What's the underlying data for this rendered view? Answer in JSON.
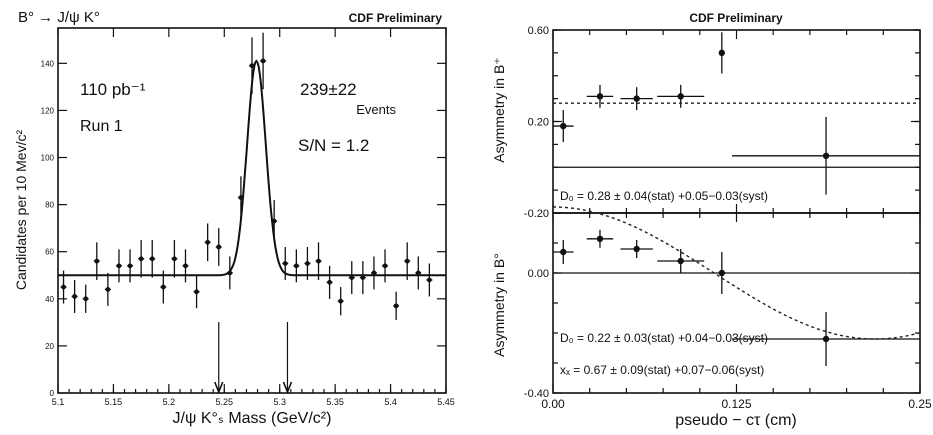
{
  "chart_data": [
    {
      "type": "scatter",
      "title": "CDF Preliminary",
      "process": "B° → J/ψ K°",
      "xlabel": "J/ψ K°ₛ Mass  (GeV/c²)",
      "ylabel": "Candidates per 10 Mev/c²",
      "xlim": [
        5.1,
        5.45
      ],
      "ylim": [
        0,
        155
      ],
      "xticks": [
        "5.1",
        "5.15",
        "5.2",
        "5.25",
        "5.3",
        "5.35",
        "5.4",
        "5.45"
      ],
      "yticks": [
        "0",
        "20",
        "40",
        "60",
        "80",
        "100",
        "120",
        "140"
      ],
      "annotations": {
        "lumi": "110 pb⁻¹",
        "run": "Run 1",
        "events_count": "239±22",
        "events_word": "Events",
        "sn": "S/N = 1.2"
      },
      "arrows_x": [
        5.245,
        5.307
      ],
      "background_level": 50,
      "peak": {
        "mean": 5.279,
        "amplitude": 91,
        "sigma": 0.0085
      },
      "points": [
        {
          "x": 5.105,
          "y": 45,
          "err": 7
        },
        {
          "x": 5.115,
          "y": 41,
          "err": 7
        },
        {
          "x": 5.125,
          "y": 40,
          "err": 6
        },
        {
          "x": 5.135,
          "y": 56,
          "err": 8
        },
        {
          "x": 5.145,
          "y": 44,
          "err": 7
        },
        {
          "x": 5.155,
          "y": 54,
          "err": 7
        },
        {
          "x": 5.165,
          "y": 54,
          "err": 7
        },
        {
          "x": 5.175,
          "y": 57,
          "err": 8
        },
        {
          "x": 5.185,
          "y": 57,
          "err": 8
        },
        {
          "x": 5.195,
          "y": 45,
          "err": 7
        },
        {
          "x": 5.205,
          "y": 57,
          "err": 8
        },
        {
          "x": 5.215,
          "y": 54,
          "err": 7
        },
        {
          "x": 5.225,
          "y": 43,
          "err": 7
        },
        {
          "x": 5.235,
          "y": 64,
          "err": 8
        },
        {
          "x": 5.245,
          "y": 62,
          "err": 8
        },
        {
          "x": 5.255,
          "y": 51,
          "err": 7
        },
        {
          "x": 5.265,
          "y": 83,
          "err": 9
        },
        {
          "x": 5.275,
          "y": 139,
          "err": 12
        },
        {
          "x": 5.285,
          "y": 141,
          "err": 12
        },
        {
          "x": 5.295,
          "y": 73,
          "err": 9
        },
        {
          "x": 5.305,
          "y": 55,
          "err": 7
        },
        {
          "x": 5.315,
          "y": 54,
          "err": 7
        },
        {
          "x": 5.325,
          "y": 55,
          "err": 7
        },
        {
          "x": 5.335,
          "y": 56,
          "err": 8
        },
        {
          "x": 5.345,
          "y": 47,
          "err": 7
        },
        {
          "x": 5.355,
          "y": 39,
          "err": 6
        },
        {
          "x": 5.365,
          "y": 49,
          "err": 7
        },
        {
          "x": 5.375,
          "y": 49,
          "err": 7
        },
        {
          "x": 5.385,
          "y": 51,
          "err": 7
        },
        {
          "x": 5.395,
          "y": 54,
          "err": 7
        },
        {
          "x": 5.405,
          "y": 37,
          "err": 6
        },
        {
          "x": 5.415,
          "y": 56,
          "err": 8
        },
        {
          "x": 5.425,
          "y": 51,
          "err": 7
        },
        {
          "x": 5.435,
          "y": 48,
          "err": 7
        }
      ]
    },
    {
      "type": "scatter",
      "title": "CDF Preliminary",
      "ylabel": "Asymmetry in B⁺",
      "xlim": [
        0,
        0.25
      ],
      "ylim": [
        -0.2,
        0.6
      ],
      "yticks": [
        "0.60",
        "0.20",
        "-0.20"
      ],
      "ytick_values": [
        0.6,
        0.2,
        -0.2
      ],
      "fit_level": 0.28,
      "fit_label": "D₀ = 0.28 ± 0.04(stat) +0.05−0.03(syst)",
      "points": [
        {
          "x": 0.007,
          "y": 0.18,
          "xerr": 0.007,
          "yerr": 0.07
        },
        {
          "x": 0.032,
          "y": 0.31,
          "xerr": 0.009,
          "yerr": 0.05
        },
        {
          "x": 0.057,
          "y": 0.3,
          "xerr": 0.011,
          "yerr": 0.05
        },
        {
          "x": 0.087,
          "y": 0.31,
          "xerr": 0.016,
          "yerr": 0.05
        },
        {
          "x": 0.115,
          "y": 0.5,
          "xerr": 0.0,
          "yerr": 0.09
        },
        {
          "x": 0.186,
          "y": 0.05,
          "xerr": 0.064,
          "yerr": 0.17
        }
      ]
    },
    {
      "type": "scatter",
      "ylabel": "Asymmetry in B°",
      "xlabel": "pseudo − cτ (cm)",
      "xlim": [
        0,
        0.25
      ],
      "ylim": [
        -0.4,
        0.2
      ],
      "xticks": [
        "0.00",
        "0.125",
        "0.25"
      ],
      "xtick_values": [
        0,
        0.125,
        0.25
      ],
      "yticks": [
        "0.00",
        "-0.40"
      ],
      "ytick_values": [
        0.0,
        -0.4
      ],
      "fit": {
        "D0": 0.22,
        "xd": 0.67
      },
      "fit_label_d": "D₀ = 0.22 ± 0.03(stat) +0.04−0.03(syst)",
      "fit_label_x": "xₓ = 0.67 ± 0.09(stat) +0.07−0.06(syst)",
      "points": [
        {
          "x": 0.007,
          "y": 0.07,
          "xerr": 0.007,
          "yerr": 0.04
        },
        {
          "x": 0.032,
          "y": 0.114,
          "xerr": 0.009,
          "yerr": 0.03
        },
        {
          "x": 0.057,
          "y": 0.08,
          "xerr": 0.011,
          "yerr": 0.03
        },
        {
          "x": 0.087,
          "y": 0.04,
          "xerr": 0.016,
          "yerr": 0.04
        },
        {
          "x": 0.115,
          "y": 0.0,
          "xerr": 0.0,
          "yerr": 0.07
        },
        {
          "x": 0.186,
          "y": -0.22,
          "xerr": 0.064,
          "yerr": 0.09
        }
      ]
    }
  ]
}
